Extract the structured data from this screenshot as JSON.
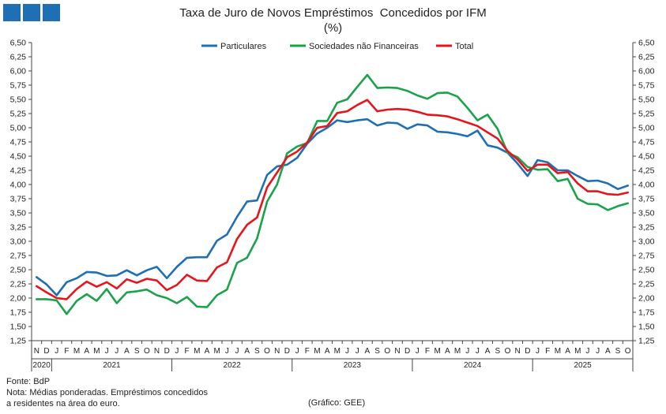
{
  "header": {
    "title": "Taxa de Juro de Novos Empréstimos  Concedidos por IFM",
    "subtitle": "(%)",
    "logo_colors": [
      "#1f6fb5",
      "#1f6fb5",
      "#1f6fb5"
    ]
  },
  "footer": {
    "source": "Fonte: BdP",
    "note_line1": "Nota: Médias ponderadas. Empréstimos concedidos",
    "note_line2": "a residentes na área do euro.",
    "credit": "(Gráfico: GEE)"
  },
  "chart_data": {
    "type": "line",
    "title": "Taxa de Juro de Novos Empréstimos  Concedidos por IFM",
    "ylabel": "(%)",
    "ylim": [
      1.25,
      6.5
    ],
    "yticks": [
      "1,25",
      "1,50",
      "1,75",
      "2,00",
      "2,25",
      "2,50",
      "2,75",
      "3,00",
      "3,25",
      "3,50",
      "3,75",
      "4,00",
      "4,25",
      "4,50",
      "4,75",
      "5,00",
      "5,25",
      "5,50",
      "5,75",
      "6,00",
      "6,25",
      "6,50"
    ],
    "y_axis_both_sides": true,
    "grid": false,
    "legend_position": "top-center",
    "x_month_labels": [
      "N",
      "D",
      "J",
      "F",
      "M",
      "A",
      "M",
      "J",
      "J",
      "A",
      "S",
      "O",
      "N",
      "D",
      "J",
      "F",
      "M",
      "A",
      "M",
      "J",
      "J",
      "A",
      "S",
      "O",
      "N",
      "D",
      "J",
      "F",
      "M",
      "A",
      "M",
      "J",
      "J",
      "A",
      "S",
      "O",
      "N",
      "D",
      "J",
      "F",
      "M",
      "A",
      "M",
      "J",
      "J",
      "A",
      "S",
      "O",
      "N",
      "D",
      "J",
      "F",
      "M",
      "A",
      "M",
      "J",
      "J",
      "A",
      "S",
      "O"
    ],
    "year_groups": [
      {
        "label": "2020",
        "count": 2
      },
      {
        "label": "2021",
        "count": 12
      },
      {
        "label": "2022",
        "count": 12
      },
      {
        "label": "2023",
        "count": 12
      },
      {
        "label": "2024",
        "count": 12
      },
      {
        "label": "2025",
        "count": 10
      }
    ],
    "series": [
      {
        "name": "Particulares",
        "color": "#1f6fb5",
        "values": [
          2.37,
          2.24,
          2.05,
          2.28,
          2.35,
          2.46,
          2.45,
          2.39,
          2.4,
          2.49,
          2.4,
          2.49,
          2.55,
          2.35,
          2.55,
          2.71,
          2.72,
          2.72,
          3.01,
          3.12,
          3.43,
          3.7,
          3.72,
          4.17,
          4.32,
          4.35,
          4.47,
          4.72,
          4.9,
          5.0,
          5.13,
          5.1,
          5.13,
          5.15,
          5.04,
          5.09,
          5.08,
          4.98,
          5.06,
          5.04,
          4.93,
          4.92,
          4.89,
          4.85,
          4.95,
          4.69,
          4.65,
          4.56,
          4.37,
          4.15,
          4.43,
          4.39,
          4.25,
          4.25,
          4.15,
          4.06,
          4.07,
          4.02,
          3.92,
          3.98
        ]
      },
      {
        "name": "Sociedades não Financeiras",
        "color": "#1aa34a",
        "values": [
          1.98,
          1.98,
          1.96,
          1.72,
          1.95,
          2.07,
          1.95,
          2.16,
          1.91,
          2.1,
          2.12,
          2.15,
          2.05,
          2.0,
          1.91,
          2.02,
          1.85,
          1.84,
          2.05,
          2.15,
          2.62,
          2.71,
          3.05,
          3.7,
          4.0,
          4.55,
          4.67,
          4.73,
          5.12,
          5.12,
          5.44,
          5.5,
          5.72,
          5.93,
          5.7,
          5.71,
          5.7,
          5.65,
          5.57,
          5.51,
          5.61,
          5.62,
          5.55,
          5.35,
          5.13,
          5.23,
          4.98,
          4.56,
          4.48,
          4.31,
          4.26,
          4.27,
          4.06,
          4.1,
          3.75,
          3.66,
          3.65,
          3.55,
          3.62,
          3.67
        ]
      },
      {
        "name": "Total",
        "color": "#e8141b",
        "values": [
          2.21,
          2.1,
          2.0,
          1.98,
          2.16,
          2.29,
          2.2,
          2.28,
          2.17,
          2.33,
          2.27,
          2.34,
          2.31,
          2.14,
          2.23,
          2.41,
          2.31,
          2.3,
          2.54,
          2.63,
          3.04,
          3.29,
          3.42,
          3.95,
          4.21,
          4.48,
          4.58,
          4.74,
          5.0,
          5.03,
          5.26,
          5.29,
          5.4,
          5.49,
          5.29,
          5.32,
          5.33,
          5.32,
          5.28,
          5.23,
          5.22,
          5.2,
          5.15,
          5.09,
          5.03,
          4.92,
          4.81,
          4.59,
          4.44,
          4.24,
          4.35,
          4.35,
          4.2,
          4.22,
          4.02,
          3.88,
          3.88,
          3.83,
          3.82,
          3.86
        ]
      }
    ]
  }
}
